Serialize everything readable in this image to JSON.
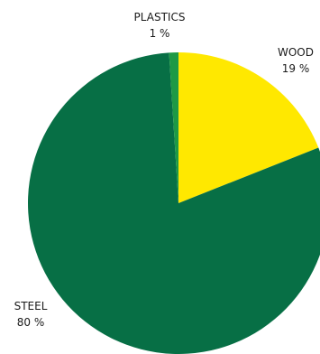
{
  "chart_data": {
    "type": "pie",
    "start_angle_deg": 0,
    "direction": "clockwise",
    "slices": [
      {
        "name": "WOOD",
        "value": 19,
        "label": "19 %",
        "color": "#FFE800"
      },
      {
        "name": "STEEL",
        "value": 80,
        "label": "80 %",
        "color": "#076F45"
      },
      {
        "name": "PLASTICS",
        "value": 1,
        "label": "1 %",
        "color": "#1E9945"
      }
    ]
  }
}
